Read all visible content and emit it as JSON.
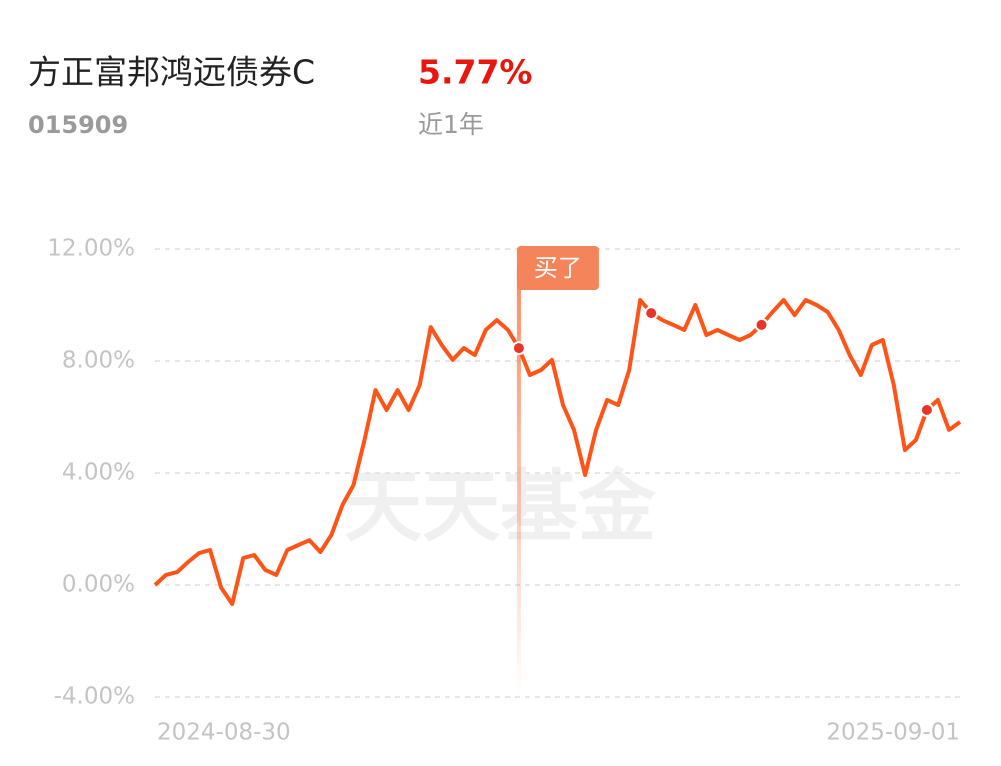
{
  "chart_data": {
    "type": "line",
    "title": "方正富邦鸿远债券C",
    "code": "015909",
    "return_label": "5.77%",
    "period": "近1年",
    "watermark": "天天基金",
    "annotation": {
      "label": "买了",
      "index": 33
    },
    "dots": [
      33,
      45,
      55,
      70
    ],
    "categories": [
      "2024-08-30",
      null,
      null,
      null,
      null,
      null,
      null,
      null,
      null,
      null,
      null,
      null,
      null,
      null,
      null,
      null,
      null,
      null,
      null,
      null,
      null,
      null,
      null,
      null,
      null,
      null,
      null,
      null,
      null,
      null,
      null,
      null,
      null,
      null,
      null,
      null,
      null,
      null,
      null,
      null,
      null,
      null,
      null,
      null,
      null,
      null,
      null,
      null,
      null,
      null,
      null,
      null,
      null,
      null,
      null,
      null,
      null,
      null,
      null,
      null,
      null,
      null,
      null,
      null,
      null,
      null,
      null,
      null,
      null,
      null,
      null,
      null,
      null,
      "2025-09-01"
    ],
    "series": [
      {
        "color": "#ff5417",
        "values": [
          0,
          0.36,
          0.46,
          0.82,
          1.14,
          1.25,
          -0.1,
          -0.68,
          0.96,
          1.07,
          0.54,
          0.36,
          1.25,
          1.43,
          1.6,
          1.18,
          1.79,
          2.86,
          3.57,
          5.18,
          6.96,
          6.25,
          6.96,
          6.25,
          7.14,
          9.21,
          8.57,
          8.04,
          8.46,
          8.21,
          9.11,
          9.46,
          9.11,
          8.46,
          7.5,
          7.68,
          8.04,
          6.43,
          5.54,
          3.93,
          5.54,
          6.61,
          6.43,
          7.68,
          10.18,
          9.71,
          9.46,
          9.29,
          9.11,
          10.0,
          8.93,
          9.11,
          8.93,
          8.75,
          8.93,
          9.29,
          9.75,
          10.18,
          9.64,
          10.18,
          10.0,
          9.75,
          9.11,
          8.21,
          7.5,
          8.57,
          8.75,
          7.14,
          4.82,
          5.18,
          6.25,
          6.61,
          5.54,
          5.82
        ]
      }
    ],
    "ylim": [
      -4,
      12
    ],
    "yticks": [
      {
        "value": 12,
        "label": "12.00%"
      },
      {
        "value": 8,
        "label": "8.00%"
      },
      {
        "value": 4,
        "label": "4.00%"
      },
      {
        "value": 0,
        "label": "0.00%"
      },
      {
        "value": -4,
        "label": "-4.00%"
      }
    ],
    "grid": true
  }
}
